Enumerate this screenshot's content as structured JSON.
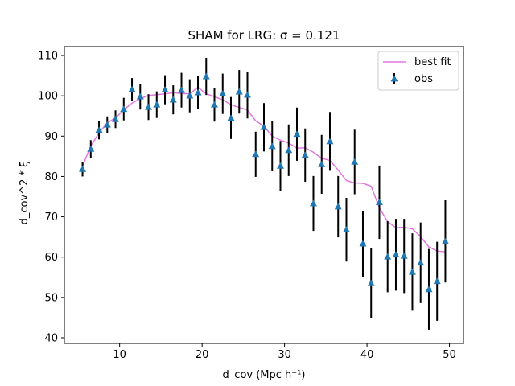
{
  "chart_data": {
    "type": "scatter",
    "title": "SHAM for LRG: σ = 0.121",
    "xlabel": "d_cov (Mpc h⁻¹)",
    "ylabel": "d_cov^2 * ξ",
    "xlim": [
      3.3,
      51.7
    ],
    "ylim": [
      38.6,
      112.2
    ],
    "xticks": [
      10,
      20,
      30,
      40,
      50
    ],
    "yticks": [
      40,
      50,
      60,
      70,
      80,
      90,
      100,
      110
    ],
    "xtick_labels": [
      "10",
      "20",
      "30",
      "40",
      "50"
    ],
    "ytick_labels": [
      "40",
      "50",
      "60",
      "70",
      "80",
      "90",
      "100",
      "110"
    ],
    "legend": {
      "position": "top-right",
      "entries": [
        "best fit",
        "obs"
      ]
    },
    "series": [
      {
        "name": "best fit",
        "kind": "line",
        "color": "#e377e0",
        "x": [
          5.5,
          6.5,
          7.5,
          8.5,
          9.5,
          10.5,
          11.5,
          12.5,
          13.5,
          14.5,
          15.5,
          16.5,
          17.5,
          18.5,
          19.5,
          20.5,
          21.5,
          22.5,
          23.5,
          24.5,
          25.5,
          26.5,
          27.5,
          28.5,
          29.5,
          30.5,
          31.5,
          32.5,
          33.5,
          34.5,
          35.5,
          36.5,
          37.5,
          38.5,
          39.5,
          40.5,
          41.5,
          42.5,
          43.5,
          44.5,
          45.5,
          46.5,
          47.5,
          48.5,
          49.5
        ],
        "y": [
          82.5,
          87.6,
          90.8,
          93.3,
          94.5,
          96.5,
          98.2,
          99.3,
          100.1,
          100.3,
          100.5,
          100.8,
          100.6,
          100.5,
          102.1,
          100.5,
          99.8,
          99.0,
          97.8,
          97.1,
          96.5,
          93.8,
          92.5,
          90.0,
          89.0,
          88.3,
          87.0,
          87.1,
          86.0,
          84.5,
          84.0,
          81.6,
          79.0,
          78.4,
          78.3,
          77.6,
          72.2,
          68.8,
          67.3,
          67.4,
          67.0,
          65.1,
          62.5,
          61.5,
          61.3
        ]
      },
      {
        "name": "obs",
        "kind": "errorbar",
        "color": "#1f77b4",
        "x": [
          5.5,
          6.5,
          7.5,
          8.5,
          9.5,
          10.5,
          11.5,
          12.5,
          13.5,
          14.5,
          15.5,
          16.5,
          17.5,
          18.5,
          19.5,
          20.5,
          21.5,
          22.5,
          23.5,
          24.5,
          25.5,
          26.5,
          27.5,
          28.5,
          29.5,
          30.5,
          31.5,
          32.5,
          33.5,
          34.5,
          35.5,
          36.5,
          37.5,
          38.5,
          39.5,
          40.5,
          41.5,
          42.5,
          43.5,
          44.5,
          45.5,
          46.5,
          47.5,
          48.5,
          49.5
        ],
        "y": [
          81.8,
          86.8,
          91.5,
          92.8,
          94.2,
          96.7,
          101.6,
          99.8,
          97.2,
          97.8,
          101.5,
          99.0,
          101.4,
          100.0,
          100.8,
          104.8,
          97.8,
          100.5,
          94.5,
          101.0,
          100.2,
          85.5,
          92.2,
          87.5,
          82.6,
          86.5,
          90.5,
          85.3,
          73.3,
          83.0,
          88.7,
          72.5,
          66.8,
          83.6,
          63.3,
          53.5,
          73.6,
          60.1,
          60.6,
          60.3,
          56.3,
          58.6,
          52.0,
          54.0,
          63.9
        ],
        "err": [
          1.8,
          2.2,
          2.3,
          2.1,
          2.2,
          2.8,
          2.8,
          3.2,
          3.2,
          3.3,
          3.6,
          3.6,
          4.3,
          4.1,
          4.1,
          4.6,
          4.2,
          5.0,
          5.2,
          5.4,
          5.8,
          5.6,
          6.0,
          6.2,
          6.2,
          6.4,
          6.6,
          6.6,
          6.8,
          7.3,
          7.3,
          7.6,
          7.9,
          8.0,
          8.2,
          8.7,
          9.1,
          8.8,
          8.9,
          9.2,
          9.6,
          10.0,
          10.0,
          9.8,
          10.2
        ]
      }
    ]
  }
}
